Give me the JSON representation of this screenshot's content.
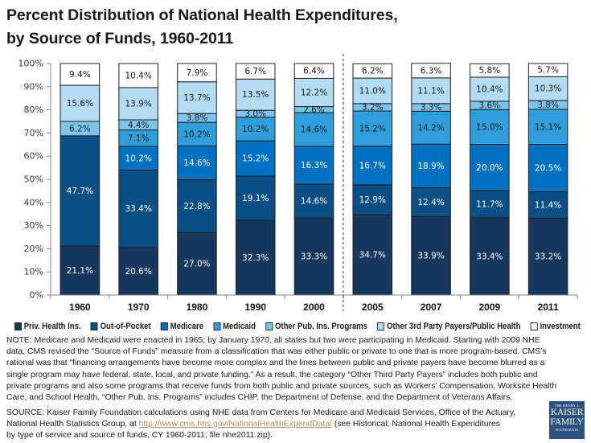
{
  "title": {
    "line1": "Percent Distribution of National Health Expenditures,",
    "line2": "by Source of Funds, 1960-2011"
  },
  "chart_data": {
    "type": "bar",
    "stacked": true,
    "title": "Percent Distribution of National Health Expenditures, by Source of Funds, 1960-2011",
    "xlabel": "",
    "ylabel": "",
    "ylim": [
      0,
      100
    ],
    "yticks": [
      0,
      10,
      20,
      30,
      40,
      50,
      60,
      70,
      80,
      90,
      100
    ],
    "ytick_labels": [
      "0%",
      "10%",
      "20%",
      "30%",
      "40%",
      "50%",
      "60%",
      "70%",
      "80%",
      "90%",
      "100%"
    ],
    "value_suffix": "%",
    "grid": false,
    "legend": "bottom",
    "separator_after_category": "2000",
    "categories": [
      "1960",
      "1970",
      "1980",
      "1990",
      "2000",
      "2005",
      "2007",
      "2009",
      "2011"
    ],
    "series": [
      {
        "name": "Priv. Health Ins.",
        "color": "#17375E",
        "label_color": "#FFFFFF",
        "values": [
          21.1,
          20.6,
          27.0,
          32.3,
          33.3,
          34.7,
          33.9,
          33.4,
          33.2
        ]
      },
      {
        "name": "Out-of-Pocket",
        "color": "#0A4F86",
        "label_color": "#FFFFFF",
        "values": [
          47.7,
          33.4,
          22.8,
          19.1,
          14.6,
          12.9,
          12.4,
          11.7,
          11.4
        ]
      },
      {
        "name": "Medicare",
        "color": "#0070C0",
        "label_color": "#FFFFFF",
        "values": [
          null,
          10.2,
          14.6,
          15.2,
          16.3,
          16.7,
          18.9,
          20.0,
          20.5
        ]
      },
      {
        "name": "Medicaid",
        "color": "#319EDC",
        "label_color": "#1A1A1A",
        "values": [
          null,
          7.1,
          10.2,
          10.2,
          14.6,
          15.2,
          14.2,
          15.0,
          15.1
        ]
      },
      {
        "name": "Other Pub. Ins. Programs",
        "color": "#7CC4EB",
        "label_color": "#1A1A1A",
        "values": [
          6.2,
          4.4,
          3.8,
          3.0,
          2.6,
          3.2,
          3.3,
          3.6,
          3.8
        ]
      },
      {
        "name": "Other 3rd Party Payers/Public Health",
        "color": "#B3DCF3",
        "label_color": "#1A1A1A",
        "values": [
          15.6,
          13.9,
          13.7,
          13.5,
          12.2,
          11.0,
          11.1,
          10.4,
          10.3
        ]
      },
      {
        "name": "Investment",
        "color": "#FFFFFF",
        "label_color": "#1A1A1A",
        "values": [
          9.4,
          10.4,
          7.9,
          6.7,
          6.4,
          6.2,
          6.3,
          5.8,
          5.7
        ]
      }
    ]
  },
  "notes": {
    "note_lines": [
      "NOTE: Medicare and Medicaid were enacted in 1965; by January 1970, all states but two were participating in Medicaid. Starting with 2009 NHE",
      "data, CMS revised the “Source of Funds” measure from a classification that was either public or private to one that is more program-based. CMS’s",
      "rational was that “financing arrangements have become more complex and the lines between public and private payers have become blurred as a",
      "single program may have federal, state, local, and private funding.”  As a result, the category “Other Third Party Payers” includes both public and",
      "private programs and also some programs that receive funds from both public and private sources, such as Workers’ Compensation, Worksite Health",
      "Care, and School Health.  “Other Pub. Ins. Programs” includes CHIP, the Department of Defense, and the Department of Veterans Affairs."
    ],
    "source_line1": "SOURCE: Kaiser Family Foundation calculations using NHE data from Centers for Medicare and Medicaid Services, Office of the Actuary,",
    "source_line2_pre": "National Health Statistics Group, at ",
    "source_link": "http://www.cms.hhs.gov/NationalHealthExpendData/",
    "source_line2_post": " (see Historical; National Health Expenditures",
    "source_line3": "by type of service and source of funds, CY 1960-2011; file nhe2011.zip).",
    "link_color": "#A39466"
  },
  "logo": {
    "line1": "THE HENRY J.",
    "line2": "KAISER",
    "line3": "FAMILY",
    "line4": "FOUNDATION",
    "background": "#2A5280"
  }
}
